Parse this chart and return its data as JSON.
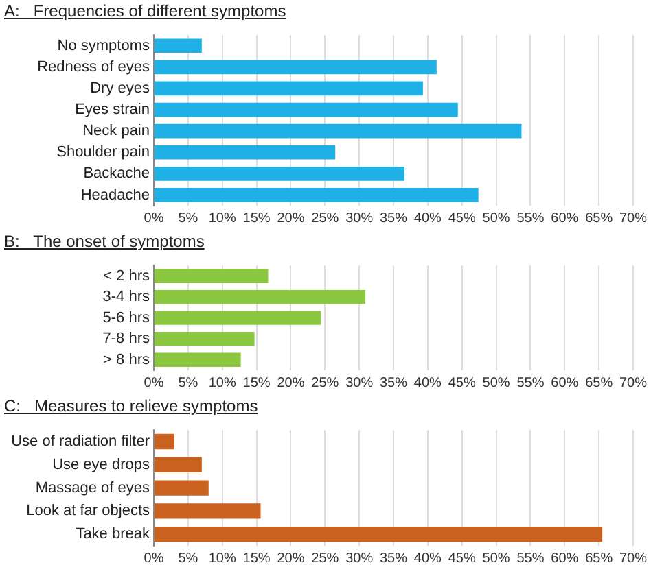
{
  "chart_data": [
    {
      "type": "bar",
      "orientation": "horizontal",
      "title": "A:   Frequencies of different symptoms",
      "categories": [
        "No symptoms",
        "Redness of eyes",
        "Dry eyes",
        "Eyes strain",
        "Neck pain",
        "Shoulder pain",
        "Backache",
        "Headache"
      ],
      "values": [
        7.0,
        41.3,
        39.3,
        44.4,
        53.7,
        26.5,
        36.6,
        47.4
      ],
      "color": "#1fb0e6",
      "xlim": [
        0,
        70
      ],
      "xticks": [
        {
          "value": 0,
          "label": "0%"
        },
        {
          "value": 5,
          "label": "5%"
        },
        {
          "value": 10,
          "label": "10%"
        },
        {
          "value": 15,
          "label": "15%"
        },
        {
          "value": 20,
          "label": "20%"
        },
        {
          "value": 25,
          "label": "25%"
        },
        {
          "value": 30,
          "label": "30%"
        },
        {
          "value": 35,
          "label": "35%"
        },
        {
          "value": 40,
          "label": "40%"
        },
        {
          "value": 45,
          "label": "45%"
        },
        {
          "value": 50,
          "label": "50%"
        },
        {
          "value": 55,
          "label": "55%"
        },
        {
          "value": 60,
          "label": "60%"
        },
        {
          "value": 65,
          "label": "65%"
        },
        {
          "value": 70,
          "label": "70%"
        }
      ],
      "grid": "x",
      "legend": false
    },
    {
      "type": "bar",
      "orientation": "horizontal",
      "title": "B:   The onset of symptoms",
      "categories": [
        "< 2 hrs",
        "3-4 hrs",
        "5-6 hrs",
        "7-8 hrs",
        "> 8 hrs"
      ],
      "values": [
        16.7,
        30.9,
        24.4,
        14.7,
        12.7
      ],
      "color": "#8cc83f",
      "xlim": [
        0,
        70
      ],
      "xticks": [
        {
          "value": 0,
          "label": "0%"
        },
        {
          "value": 5,
          "label": "5%"
        },
        {
          "value": 10,
          "label": "10%"
        },
        {
          "value": 15,
          "label": "15%"
        },
        {
          "value": 20,
          "label": "20%"
        },
        {
          "value": 25,
          "label": "25%"
        },
        {
          "value": 30,
          "label": "30%"
        },
        {
          "value": 35,
          "label": "35%"
        },
        {
          "value": 40,
          "label": "40%"
        },
        {
          "value": 45,
          "label": "45%"
        },
        {
          "value": 50,
          "label": "50%"
        },
        {
          "value": 55,
          "label": "55%"
        },
        {
          "value": 60,
          "label": "60%"
        },
        {
          "value": 65,
          "label": "65%"
        },
        {
          "value": 70,
          "label": "70%"
        }
      ],
      "grid": "x",
      "legend": false
    },
    {
      "type": "bar",
      "orientation": "horizontal",
      "title": "C:   Measures to relieve symptoms",
      "categories": [
        "Use of radiation filter",
        "Use eye drops",
        "Massage of eyes",
        "Look at far objects",
        "Take break"
      ],
      "values": [
        3.0,
        7.0,
        8.0,
        15.6,
        65.5
      ],
      "color": "#c8621e",
      "xlim": [
        0,
        70
      ],
      "xticks": [
        {
          "value": 0,
          "label": "0%"
        },
        {
          "value": 5,
          "label": "5%"
        },
        {
          "value": 10,
          "label": "10%"
        },
        {
          "value": 15,
          "label": "15%"
        },
        {
          "value": 20,
          "label": "20%"
        },
        {
          "value": 25,
          "label": "25%"
        },
        {
          "value": 30,
          "label": "30%"
        },
        {
          "value": 35,
          "label": "35%"
        },
        {
          "value": 40,
          "label": "40%"
        },
        {
          "value": 45,
          "label": "45%"
        },
        {
          "value": 50,
          "label": "50%"
        },
        {
          "value": 55,
          "label": "55%"
        },
        {
          "value": 60,
          "label": "60%"
        },
        {
          "value": 65,
          "label": "65%"
        },
        {
          "value": 70,
          "label": "70%"
        }
      ],
      "grid": "x",
      "legend": false
    }
  ]
}
